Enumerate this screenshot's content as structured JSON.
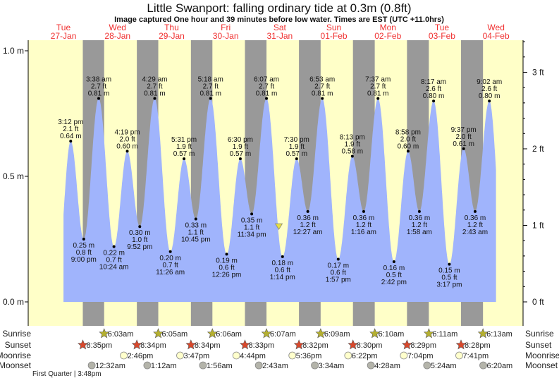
{
  "chart_data": {
    "type": "area",
    "title": "Little Swanport: falling  ordinary tide at 0.3m (0.8ft)",
    "subtitle": "Image captured One hour and 39 minutes before low water. Times are EST (UTC +11.0hrs)",
    "days": [
      {
        "dow": "Tue",
        "date": "27-Jan"
      },
      {
        "dow": "Wed",
        "date": "28-Jan"
      },
      {
        "dow": "Thu",
        "date": "29-Jan"
      },
      {
        "dow": "Fri",
        "date": "30-Jan"
      },
      {
        "dow": "Sat",
        "date": "31-Jan"
      },
      {
        "dow": "Sun",
        "date": "01-Feb"
      },
      {
        "dow": "Mon",
        "date": "02-Feb"
      },
      {
        "dow": "Tue",
        "date": "03-Feb"
      },
      {
        "dow": "Wed",
        "date": "04-Feb"
      }
    ],
    "y_left": {
      "unit": "m",
      "ylim": [
        0,
        1.0
      ],
      "ticks": [
        "0.0 m",
        "0.5 m",
        "1.0 m"
      ],
      "tick_values": [
        0,
        0.5,
        1.0
      ]
    },
    "y_right": {
      "unit": "ft",
      "ticks": [
        "0 ft",
        "1 ft",
        "2 ft",
        "3 ft"
      ],
      "tick_values": [
        0,
        1,
        2,
        3
      ]
    },
    "current": {
      "level_m": 0.3,
      "level_ft": 0.8,
      "state": "falling",
      "date": "31-Jan",
      "time": "11:35 am"
    },
    "tides": [
      {
        "type": "high",
        "date": "27-Jan",
        "time": "3:12 pm",
        "m": 0.64,
        "ft": 2.1
      },
      {
        "type": "low",
        "date": "27-Jan",
        "time": "9:00 pm",
        "m": 0.25,
        "ft": 0.8
      },
      {
        "type": "high",
        "date": "28-Jan",
        "time": "3:38 am",
        "m": 0.81,
        "ft": 2.7
      },
      {
        "type": "low",
        "date": "28-Jan",
        "time": "10:24 am",
        "m": 0.22,
        "ft": 0.7
      },
      {
        "type": "high",
        "date": "28-Jan",
        "time": "4:19 pm",
        "m": 0.6,
        "ft": 2.0
      },
      {
        "type": "low",
        "date": "28-Jan",
        "time": "9:52 pm",
        "m": 0.3,
        "ft": 1.0
      },
      {
        "type": "high",
        "date": "29-Jan",
        "time": "4:29 am",
        "m": 0.81,
        "ft": 2.7
      },
      {
        "type": "low",
        "date": "29-Jan",
        "time": "11:26 am",
        "m": 0.2,
        "ft": 0.7
      },
      {
        "type": "high",
        "date": "29-Jan",
        "time": "5:31 pm",
        "m": 0.57,
        "ft": 1.9
      },
      {
        "type": "low",
        "date": "29-Jan",
        "time": "10:45 pm",
        "m": 0.33,
        "ft": 1.1
      },
      {
        "type": "high",
        "date": "30-Jan",
        "time": "5:18 am",
        "m": 0.81,
        "ft": 2.7
      },
      {
        "type": "low",
        "date": "30-Jan",
        "time": "12:26 pm",
        "m": 0.19,
        "ft": 0.6
      },
      {
        "type": "high",
        "date": "30-Jan",
        "time": "6:30 pm",
        "m": 0.57,
        "ft": 1.9
      },
      {
        "type": "low",
        "date": "30-Jan",
        "time": "11:34 pm",
        "m": 0.35,
        "ft": 1.1
      },
      {
        "type": "high",
        "date": "31-Jan",
        "time": "6:07 am",
        "m": 0.81,
        "ft": 2.7
      },
      {
        "type": "low",
        "date": "31-Jan",
        "time": "1:14 pm",
        "m": 0.18,
        "ft": 0.6
      },
      {
        "type": "high",
        "date": "31-Jan",
        "time": "7:30 pm",
        "m": 0.57,
        "ft": 1.9
      },
      {
        "type": "low",
        "date": "01-Feb",
        "time": "12:27 am",
        "m": 0.36,
        "ft": 1.2
      },
      {
        "type": "high",
        "date": "01-Feb",
        "time": "6:53 am",
        "m": 0.81,
        "ft": 2.7
      },
      {
        "type": "low",
        "date": "01-Feb",
        "time": "1:57 pm",
        "m": 0.17,
        "ft": 0.6
      },
      {
        "type": "high",
        "date": "01-Feb",
        "time": "8:13 pm",
        "m": 0.58,
        "ft": 1.9
      },
      {
        "type": "low",
        "date": "02-Feb",
        "time": "1:16 am",
        "m": 0.36,
        "ft": 1.2
      },
      {
        "type": "high",
        "date": "02-Feb",
        "time": "7:37 am",
        "m": 0.81,
        "ft": 2.7
      },
      {
        "type": "low",
        "date": "02-Feb",
        "time": "2:42 pm",
        "m": 0.16,
        "ft": 0.5
      },
      {
        "type": "high",
        "date": "02-Feb",
        "time": "8:58 pm",
        "m": 0.6,
        "ft": 2.0
      },
      {
        "type": "low",
        "date": "03-Feb",
        "time": "1:58 am",
        "m": 0.36,
        "ft": 1.2
      },
      {
        "type": "high",
        "date": "03-Feb",
        "time": "8:17 am",
        "m": 0.8,
        "ft": 2.6
      },
      {
        "type": "low",
        "date": "03-Feb",
        "time": "3:17 pm",
        "m": 0.15,
        "ft": 0.5
      },
      {
        "type": "high",
        "date": "03-Feb",
        "time": "9:37 pm",
        "m": 0.61,
        "ft": 2.0
      },
      {
        "type": "low",
        "date": "04-Feb",
        "time": "2:43 am",
        "m": 0.36,
        "ft": 1.2
      },
      {
        "type": "high",
        "date": "04-Feb",
        "time": "9:02 am",
        "m": 0.8,
        "ft": 2.6
      }
    ],
    "rows": {
      "sunrise": {
        "label": "Sunrise",
        "events": [
          {
            "date": "28-Jan",
            "time": "6:03am"
          },
          {
            "date": "29-Jan",
            "time": "6:05am"
          },
          {
            "date": "30-Jan",
            "time": "6:06am"
          },
          {
            "date": "31-Jan",
            "time": "6:07am"
          },
          {
            "date": "01-Feb",
            "time": "6:09am"
          },
          {
            "date": "02-Feb",
            "time": "6:10am"
          },
          {
            "date": "03-Feb",
            "time": "6:11am"
          },
          {
            "date": "04-Feb",
            "time": "6:13am"
          }
        ]
      },
      "sunset": {
        "label": "Sunset",
        "events": [
          {
            "date": "27-Jan",
            "time": "8:35pm"
          },
          {
            "date": "28-Jan",
            "time": "8:34pm"
          },
          {
            "date": "29-Jan",
            "time": "8:34pm"
          },
          {
            "date": "30-Jan",
            "time": "8:33pm"
          },
          {
            "date": "31-Jan",
            "time": "8:32pm"
          },
          {
            "date": "01-Feb",
            "time": "8:30pm"
          },
          {
            "date": "02-Feb",
            "time": "8:29pm"
          },
          {
            "date": "03-Feb",
            "time": "8:28pm"
          }
        ]
      },
      "moonrise": {
        "label": "Moonrise",
        "events": [
          {
            "date": "28-Jan",
            "time": "2:46pm"
          },
          {
            "date": "29-Jan",
            "time": "3:47pm"
          },
          {
            "date": "30-Jan",
            "time": "4:44pm"
          },
          {
            "date": "31-Jan",
            "time": "5:36pm"
          },
          {
            "date": "01-Feb",
            "time": "6:22pm"
          },
          {
            "date": "02-Feb",
            "time": "7:04pm"
          },
          {
            "date": "03-Feb",
            "time": "7:41pm"
          }
        ]
      },
      "moonset": {
        "label": "Moonset",
        "events": [
          {
            "date": "28-Jan",
            "time": "12:32am"
          },
          {
            "date": "29-Jan",
            "time": "1:12am"
          },
          {
            "date": "30-Jan",
            "time": "1:56am"
          },
          {
            "date": "31-Jan",
            "time": "2:43am"
          },
          {
            "date": "01-Feb",
            "time": "3:34am"
          },
          {
            "date": "02-Feb",
            "time": "4:28am"
          },
          {
            "date": "03-Feb",
            "time": "5:24am"
          },
          {
            "date": "04-Feb",
            "time": "6:20am"
          }
        ]
      }
    },
    "moon_phase": "First Quarter | 3:48pm",
    "colors": {
      "water": "#a0b4fc",
      "day": "#ffffc8",
      "night": "#999999",
      "day_label": "#f03030",
      "sunrise": "#b5b030",
      "sunset": "#d8482c",
      "moonrise": "#ffffcc",
      "moonset": "#b4b4aa",
      "current_marker": "#e8e040"
    }
  }
}
